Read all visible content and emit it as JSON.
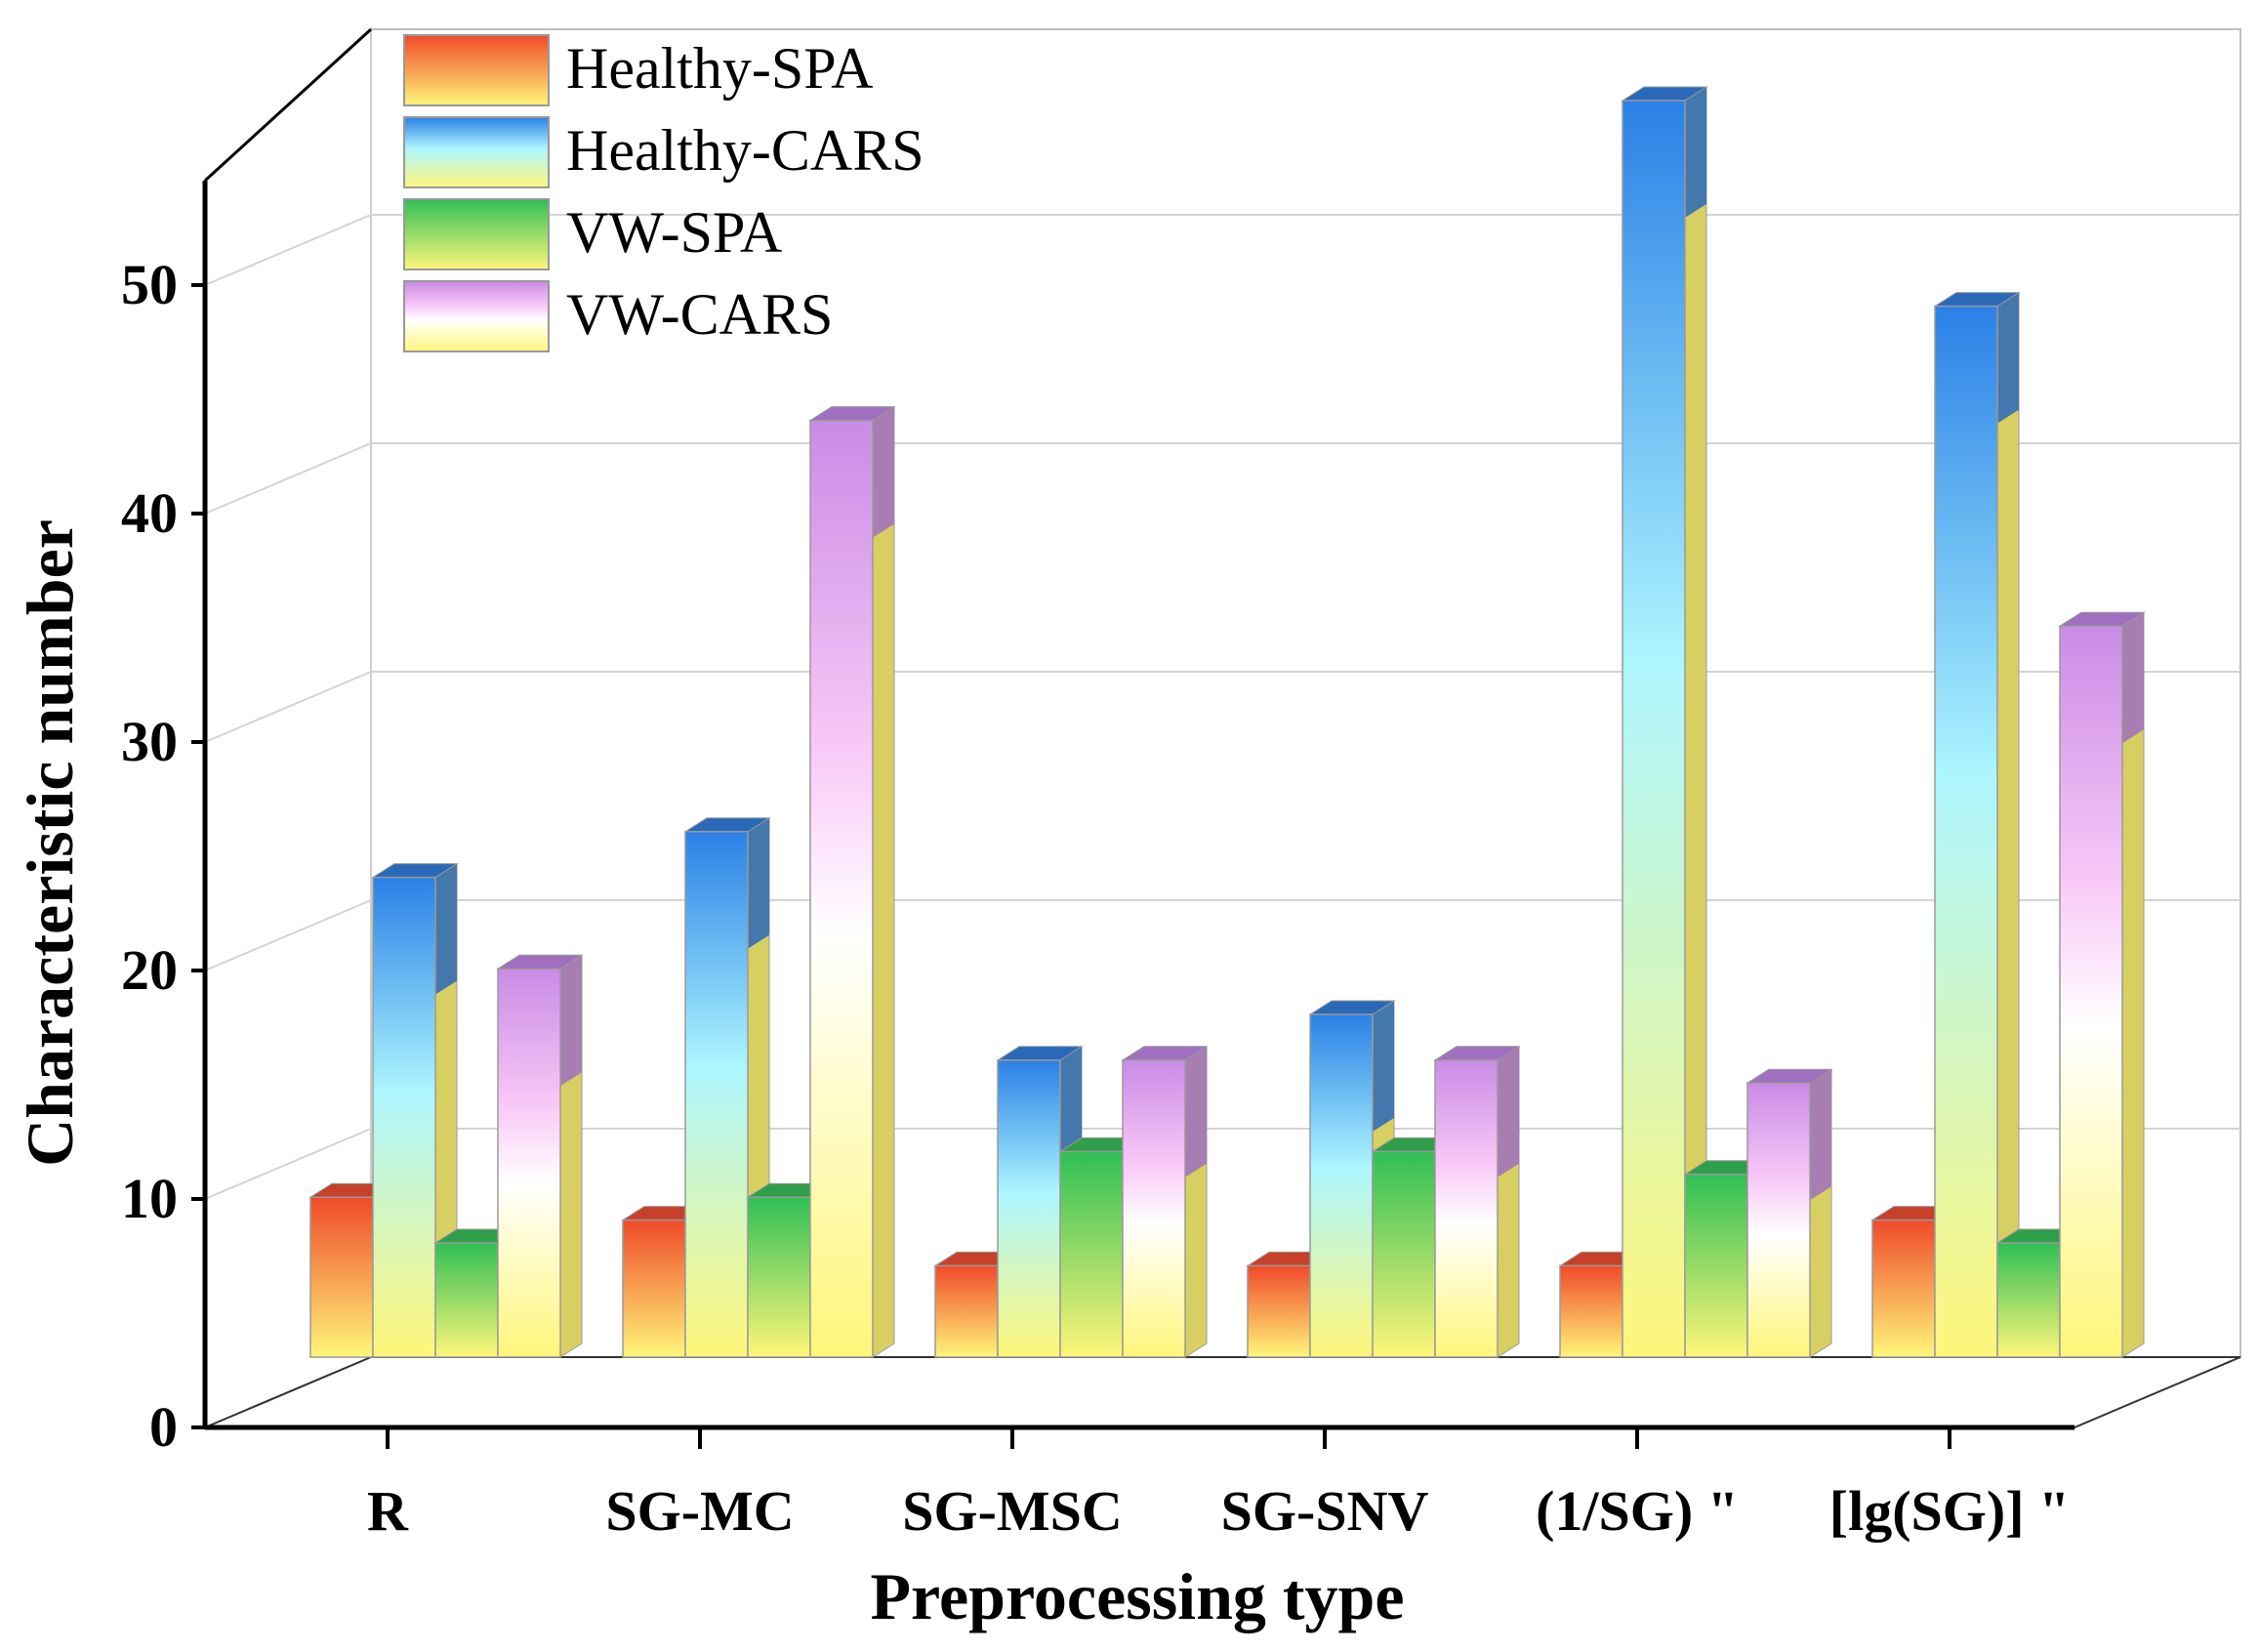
{
  "chart_data": {
    "type": "bar",
    "style": "3d-clustered-column",
    "categories": [
      "R",
      "SG-MC",
      "SG-MSC",
      "SG-SNV",
      "(1/SG) \"",
      "[lg(SG)] \""
    ],
    "series": [
      {
        "name": "Healthy-SPA",
        "values": [
          7,
          6,
          4,
          4,
          4,
          6
        ]
      },
      {
        "name": "Healthy-CARS",
        "values": [
          21,
          23,
          13,
          15,
          55,
          46
        ]
      },
      {
        "name": "VW-SPA",
        "values": [
          5,
          7,
          9,
          9,
          8,
          5
        ]
      },
      {
        "name": "VW-CARS",
        "values": [
          17,
          41,
          13,
          13,
          12,
          32
        ]
      }
    ],
    "colors": {
      "Healthy-SPA": {
        "top": "#f04a2a",
        "bottom": "#fff67a",
        "dark": "#c7402a"
      },
      "Healthy-CARS": {
        "top": "#2a80e6",
        "bottom": "#fff67a",
        "dark": "#2a69b8"
      },
      "VW-SPA": {
        "top": "#2fbf55",
        "bottom": "#fff67a",
        "dark": "#2f9e4a"
      },
      "VW-CARS": {
        "top": "#c98be6",
        "bottom": "#fff67a",
        "dark": "#a06fc0"
      }
    },
    "xlabel": "Preprocessing type",
    "ylabel": "Characteristic number",
    "ylim": [
      0,
      55
    ],
    "yticks": [
      0,
      10,
      20,
      30,
      40,
      50
    ],
    "grid": true,
    "legend": "top-left"
  }
}
